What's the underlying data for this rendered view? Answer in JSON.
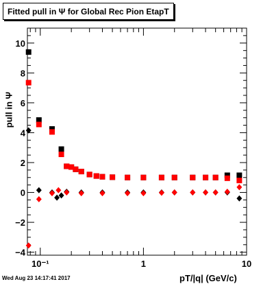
{
  "title": "Fitted pull in  Ψ  for Global Rec Pion EtapT",
  "ylabel": "pull in Ψ",
  "xlabel": "pT/|q| (GeV/c)",
  "timestamp": "Wed Aug 23 14:17:41 2017",
  "colors": {
    "series_black": "#000000",
    "series_red": "#ff0000",
    "frame": "#000000"
  },
  "chart_data": {
    "type": "scatter",
    "xscale": "log",
    "xlim": [
      0.075,
      10
    ],
    "ylim": [
      -4.2,
      11
    ],
    "xticks": [
      {
        "value": 0.1,
        "label": "10⁻¹"
      },
      {
        "value": 1,
        "label": "1"
      },
      {
        "value": 10,
        "label": "10"
      }
    ],
    "yticks": [
      {
        "value": -4,
        "label": "−4"
      },
      {
        "value": -2,
        "label": "−2"
      },
      {
        "value": 0,
        "label": "0"
      },
      {
        "value": 2,
        "label": "2"
      },
      {
        "value": 4,
        "label": "4"
      },
      {
        "value": 6,
        "label": "6"
      },
      {
        "value": 8,
        "label": "8"
      },
      {
        "value": 10,
        "label": "10"
      }
    ],
    "series": [
      {
        "color": "#000000",
        "marker": "square",
        "points": [
          [
            0.077,
            9.4
          ],
          [
            0.097,
            4.85
          ],
          [
            0.13,
            4.25
          ],
          [
            0.16,
            2.9
          ],
          [
            0.18,
            1.75
          ],
          [
            0.2,
            1.7
          ],
          [
            0.22,
            1.55
          ],
          [
            0.25,
            1.4
          ],
          [
            0.3,
            1.2
          ],
          [
            0.35,
            1.1
          ],
          [
            0.4,
            1.05
          ],
          [
            0.5,
            1.02
          ],
          [
            0.7,
            1.0
          ],
          [
            1.0,
            1.0
          ],
          [
            1.5,
            1.0
          ],
          [
            2.0,
            1.0
          ],
          [
            3.0,
            1.0
          ],
          [
            4.0,
            1.0
          ],
          [
            5.0,
            1.0
          ],
          [
            6.5,
            1.15
          ],
          [
            8.5,
            1.15
          ]
        ]
      },
      {
        "color": "#000000",
        "marker": "diamond",
        "points": [
          [
            0.077,
            4.15
          ],
          [
            0.097,
            0.15
          ],
          [
            0.13,
            0.0
          ],
          [
            0.145,
            -0.35
          ],
          [
            0.16,
            -0.2
          ],
          [
            0.18,
            0.05
          ],
          [
            0.25,
            0.0
          ],
          [
            0.4,
            0.0
          ],
          [
            0.7,
            0.0
          ],
          [
            1.0,
            0.0
          ],
          [
            1.5,
            0.0
          ],
          [
            2.0,
            0.0
          ],
          [
            3.0,
            0.0
          ],
          [
            4.0,
            0.0
          ],
          [
            5.0,
            0.0
          ],
          [
            6.5,
            0.0
          ],
          [
            8.5,
            -0.4
          ]
        ]
      },
      {
        "color": "#ff0000",
        "marker": "square",
        "points": [
          [
            0.077,
            7.35
          ],
          [
            0.097,
            4.55
          ],
          [
            0.13,
            4.05
          ],
          [
            0.16,
            2.55
          ],
          [
            0.18,
            1.75
          ],
          [
            0.2,
            1.7
          ],
          [
            0.22,
            1.55
          ],
          [
            0.25,
            1.4
          ],
          [
            0.3,
            1.2
          ],
          [
            0.35,
            1.1
          ],
          [
            0.4,
            1.05
          ],
          [
            0.5,
            1.02
          ],
          [
            0.7,
            1.0
          ],
          [
            1.0,
            1.0
          ],
          [
            1.5,
            1.0
          ],
          [
            2.0,
            1.0
          ],
          [
            3.0,
            1.0
          ],
          [
            4.0,
            1.0
          ],
          [
            5.0,
            1.0
          ],
          [
            6.5,
            0.95
          ],
          [
            8.5,
            0.8
          ]
        ]
      },
      {
        "color": "#ff0000",
        "marker": "diamond",
        "points": [
          [
            0.077,
            -3.55
          ],
          [
            0.097,
            -0.45
          ],
          [
            0.13,
            -0.05
          ],
          [
            0.15,
            0.15
          ],
          [
            0.18,
            0.0
          ],
          [
            0.25,
            -0.05
          ],
          [
            0.4,
            -0.05
          ],
          [
            0.7,
            -0.05
          ],
          [
            1.0,
            -0.05
          ],
          [
            1.5,
            -0.02
          ],
          [
            2.0,
            0.0
          ],
          [
            3.0,
            0.0
          ],
          [
            4.0,
            0.0
          ],
          [
            5.0,
            0.0
          ],
          [
            6.5,
            0.05
          ],
          [
            8.5,
            0.35
          ]
        ]
      }
    ]
  }
}
